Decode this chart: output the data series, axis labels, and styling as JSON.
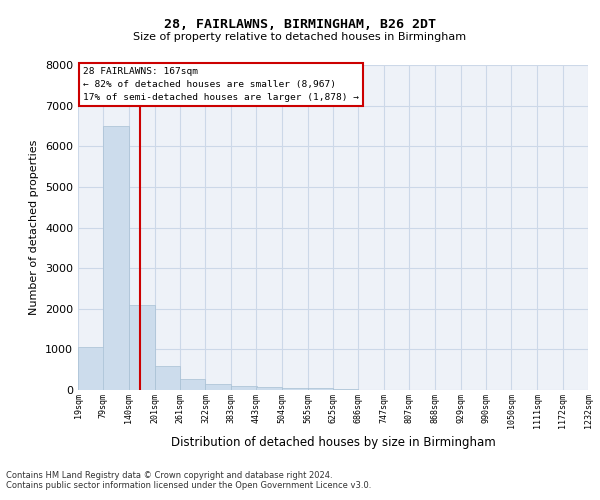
{
  "title1": "28, FAIRLAWNS, BIRMINGHAM, B26 2DT",
  "title2": "Size of property relative to detached houses in Birmingham",
  "xlabel": "Distribution of detached houses by size in Birmingham",
  "ylabel": "Number of detached properties",
  "annotation_title": "28 FAIRLAWNS: 167sqm",
  "annotation_line1": "← 82% of detached houses are smaller (8,967)",
  "annotation_line2": "17% of semi-detached houses are larger (1,878) →",
  "footnote1": "Contains HM Land Registry data © Crown copyright and database right 2024.",
  "footnote2": "Contains public sector information licensed under the Open Government Licence v3.0.",
  "bar_left_edges": [
    19,
    79,
    140,
    201,
    261,
    322,
    383,
    443,
    504,
    565,
    625,
    686,
    747,
    807,
    868,
    929,
    990,
    1050,
    1111,
    1172
  ],
  "bar_widths": [
    61,
    61,
    61,
    61,
    61,
    61,
    61,
    61,
    61,
    61,
    61,
    61,
    61,
    61,
    61,
    61,
    61,
    61,
    61,
    61
  ],
  "bar_heights": [
    1050,
    6500,
    2100,
    580,
    270,
    140,
    100,
    70,
    50,
    40,
    30,
    0,
    0,
    0,
    0,
    0,
    0,
    0,
    0,
    0
  ],
  "bar_color": "#ccdcec",
  "bar_edgecolor": "#a8c0d4",
  "vline_x": 167,
  "vline_color": "#cc0000",
  "grid_color": "#ccd8e8",
  "background_color": "#eef2f8",
  "ylim": [
    0,
    8000
  ],
  "yticks": [
    0,
    1000,
    2000,
    3000,
    4000,
    5000,
    6000,
    7000,
    8000
  ],
  "xlim": [
    19,
    1232
  ],
  "tick_labels": [
    "19sqm",
    "79sqm",
    "140sqm",
    "201sqm",
    "261sqm",
    "322sqm",
    "383sqm",
    "443sqm",
    "504sqm",
    "565sqm",
    "625sqm",
    "686sqm",
    "747sqm",
    "807sqm",
    "868sqm",
    "929sqm",
    "990sqm",
    "1050sqm",
    "1111sqm",
    "1172sqm",
    "1232sqm"
  ],
  "tick_positions": [
    19,
    79,
    140,
    201,
    261,
    322,
    383,
    443,
    504,
    565,
    625,
    686,
    747,
    807,
    868,
    929,
    990,
    1050,
    1111,
    1172,
    1232
  ]
}
